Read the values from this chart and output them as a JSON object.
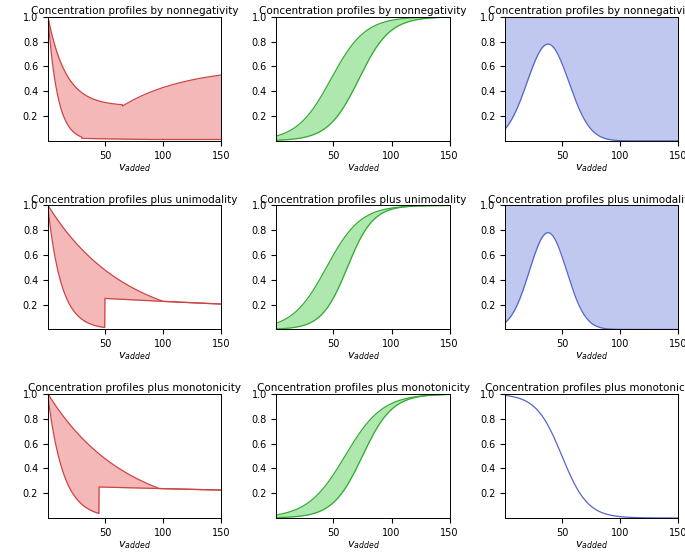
{
  "titles_row1": [
    "Concentration profiles by nonnegativity",
    "Concentration profiles by nonnegativity",
    "Concentration profiles by nonnegativity"
  ],
  "titles_row2": [
    "Concentration profiles plus unimodality",
    "Concentration profiles plus unimodality",
    "Concentration profiles plus unimodality"
  ],
  "titles_row3": [
    "Concentration profiles plus monotonicity",
    "Concentration profiles plus monotonicity",
    "Concentration profiles plus monotonicity"
  ],
  "ylim": [
    0,
    1.0
  ],
  "xlim": [
    1,
    150
  ],
  "colors_fill": [
    "#f5b8b8",
    "#aee8ae",
    "#c0c8f0"
  ],
  "colors_line": [
    "#cc4444",
    "#33aa33",
    "#5566cc"
  ],
  "title_fontsize": 7.5,
  "label_fontsize": 8,
  "tick_fontsize": 7
}
